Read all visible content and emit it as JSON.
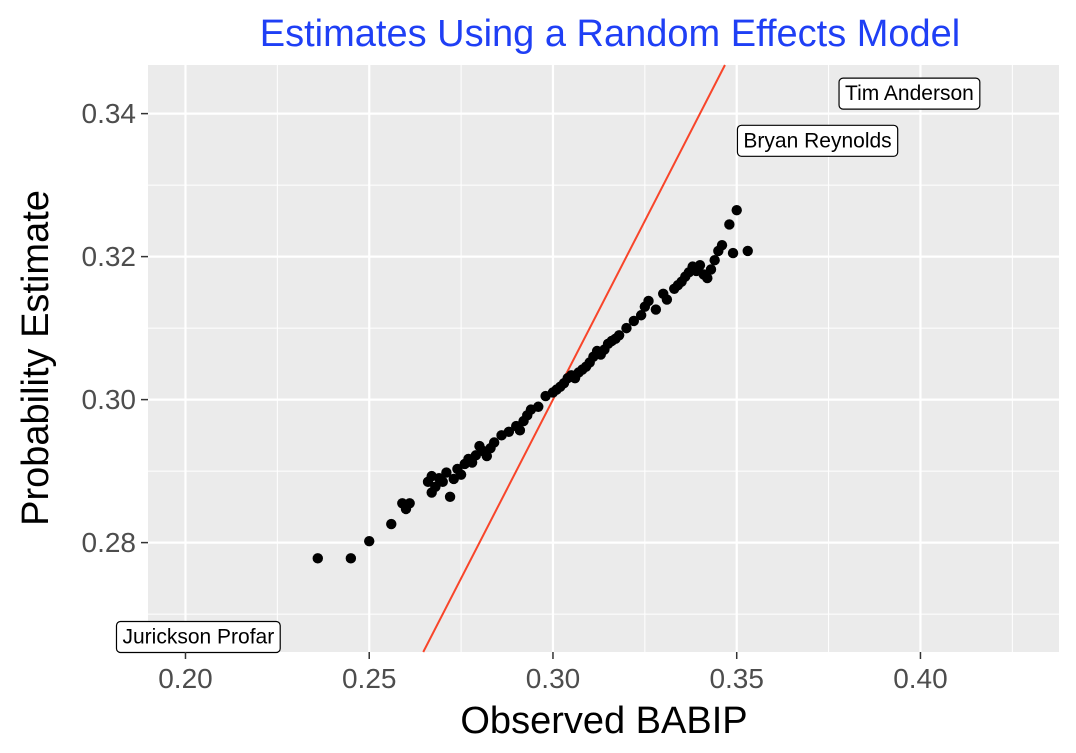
{
  "chart_data": {
    "type": "scatter",
    "title": "Estimates Using a Random Effects Model",
    "title_color": "#1f3ff5",
    "xlabel": "Observed BABIP",
    "ylabel": "Probability Estimate",
    "xlim": [
      0.1898,
      0.4377
    ],
    "ylim": [
      0.2647,
      0.3468
    ],
    "x_ticks": [
      0.2,
      0.25,
      0.3,
      0.35,
      0.4
    ],
    "x_tick_labels": [
      "0.20",
      "0.25",
      "0.30",
      "0.35",
      "0.40"
    ],
    "y_ticks": [
      0.28,
      0.3,
      0.32,
      0.34
    ],
    "y_tick_labels": [
      "0.28",
      "0.30",
      "0.32",
      "0.34"
    ],
    "grid": true,
    "panel_background": "#ebebeb",
    "point_color": "#000000",
    "reference_line": {
      "slope": 1,
      "intercept": 0,
      "color": "#f8452a"
    },
    "points": [
      [
        0.236,
        0.2778
      ],
      [
        0.245,
        0.2778
      ],
      [
        0.25,
        0.2802
      ],
      [
        0.256,
        0.2826
      ],
      [
        0.259,
        0.2855
      ],
      [
        0.261,
        0.2855
      ],
      [
        0.26,
        0.2847
      ],
      [
        0.267,
        0.2893
      ],
      [
        0.266,
        0.2885
      ],
      [
        0.268,
        0.2878
      ],
      [
        0.267,
        0.287
      ],
      [
        0.269,
        0.289
      ],
      [
        0.27,
        0.2885
      ],
      [
        0.271,
        0.2898
      ],
      [
        0.272,
        0.2864
      ],
      [
        0.273,
        0.2889
      ],
      [
        0.274,
        0.2903
      ],
      [
        0.275,
        0.2895
      ],
      [
        0.276,
        0.291
      ],
      [
        0.277,
        0.2917
      ],
      [
        0.278,
        0.2912
      ],
      [
        0.279,
        0.2922
      ],
      [
        0.28,
        0.2935
      ],
      [
        0.281,
        0.2928
      ],
      [
        0.282,
        0.2921
      ],
      [
        0.283,
        0.2932
      ],
      [
        0.284,
        0.294
      ],
      [
        0.286,
        0.295
      ],
      [
        0.288,
        0.2955
      ],
      [
        0.29,
        0.2963
      ],
      [
        0.291,
        0.2957
      ],
      [
        0.292,
        0.297
      ],
      [
        0.293,
        0.2978
      ],
      [
        0.294,
        0.2986
      ],
      [
        0.296,
        0.299
      ],
      [
        0.298,
        0.3005
      ],
      [
        0.3,
        0.301
      ],
      [
        0.301,
        0.3014
      ],
      [
        0.302,
        0.3018
      ],
      [
        0.303,
        0.3023
      ],
      [
        0.304,
        0.303
      ],
      [
        0.305,
        0.3034
      ],
      [
        0.306,
        0.303
      ],
      [
        0.307,
        0.3038
      ],
      [
        0.308,
        0.3042
      ],
      [
        0.309,
        0.3046
      ],
      [
        0.31,
        0.3052
      ],
      [
        0.311,
        0.306
      ],
      [
        0.312,
        0.3068
      ],
      [
        0.313,
        0.3063
      ],
      [
        0.314,
        0.307
      ],
      [
        0.315,
        0.3078
      ],
      [
        0.316,
        0.3082
      ],
      [
        0.317,
        0.3085
      ],
      [
        0.318,
        0.309
      ],
      [
        0.32,
        0.31
      ],
      [
        0.322,
        0.311
      ],
      [
        0.324,
        0.3118
      ],
      [
        0.325,
        0.313
      ],
      [
        0.326,
        0.3138
      ],
      [
        0.328,
        0.3126
      ],
      [
        0.33,
        0.3148
      ],
      [
        0.331,
        0.314
      ],
      [
        0.333,
        0.3155
      ],
      [
        0.334,
        0.316
      ],
      [
        0.335,
        0.3165
      ],
      [
        0.336,
        0.3172
      ],
      [
        0.337,
        0.3178
      ],
      [
        0.338,
        0.3186
      ],
      [
        0.339,
        0.318
      ],
      [
        0.34,
        0.3188
      ],
      [
        0.341,
        0.3175
      ],
      [
        0.342,
        0.317
      ],
      [
        0.343,
        0.3182
      ],
      [
        0.344,
        0.3195
      ],
      [
        0.345,
        0.3208
      ],
      [
        0.346,
        0.3216
      ],
      [
        0.348,
        0.3245
      ],
      [
        0.349,
        0.3205
      ],
      [
        0.35,
        0.3265
      ],
      [
        0.353,
        0.3208
      ]
    ],
    "annotations": [
      {
        "text": "Tim Anderson",
        "x": 0.397,
        "y": 0.3428
      },
      {
        "text": "Bryan Reynolds",
        "x": 0.372,
        "y": 0.3362
      },
      {
        "text": "Jurickson Profar",
        "x": 0.2035,
        "y": 0.2668
      }
    ]
  }
}
